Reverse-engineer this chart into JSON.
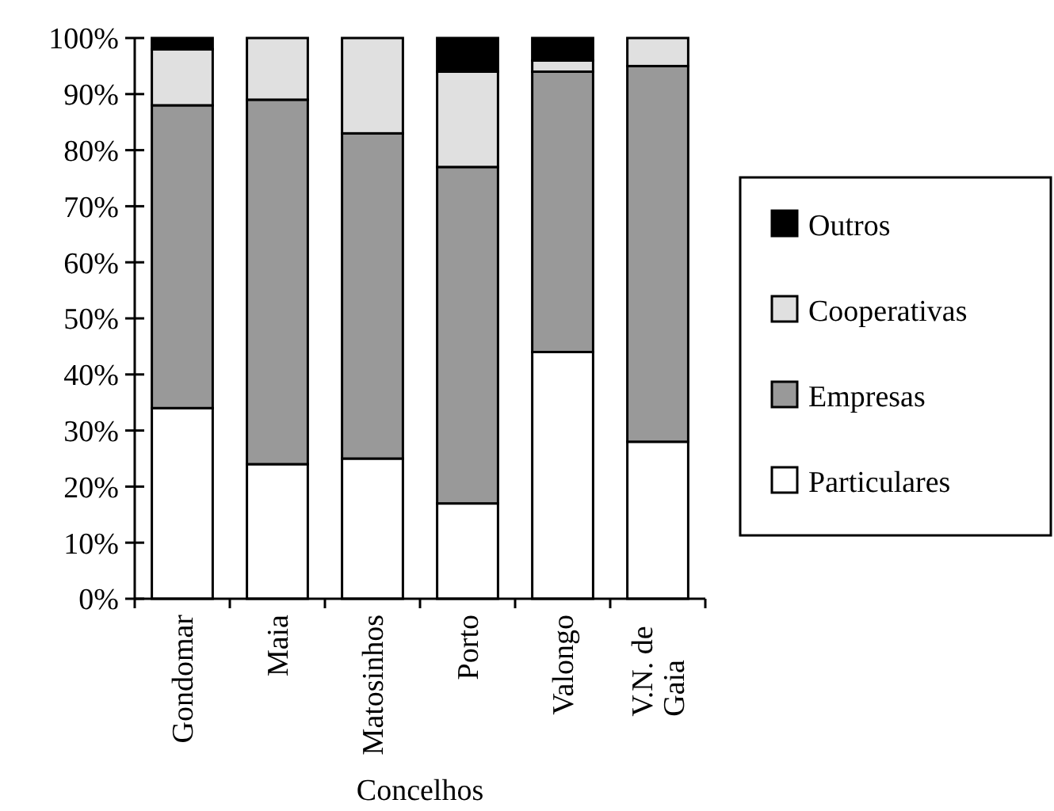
{
  "chart_data": {
    "type": "bar",
    "stacked": true,
    "xlabel": "Concelhos",
    "categories": [
      "Gondomar",
      "Maia",
      "Matosinhos",
      "Porto",
      "Valongo",
      "V.N. de Gaia"
    ],
    "series": [
      {
        "name": "Particulares",
        "color": "#ffffff",
        "values": [
          34,
          24,
          25,
          17,
          44,
          28
        ]
      },
      {
        "name": "Empresas",
        "color": "#999999",
        "values": [
          54,
          65,
          58,
          60,
          50,
          67
        ]
      },
      {
        "name": "Cooperativas",
        "color": "#e0e0e0",
        "values": [
          10,
          11,
          17,
          17,
          2,
          5
        ]
      },
      {
        "name": "Outros",
        "color": "#000000",
        "values": [
          2,
          0,
          0,
          6,
          4,
          0
        ]
      }
    ],
    "ylim": [
      0,
      100
    ],
    "yticks": [
      {
        "value": 0,
        "label": "0%"
      },
      {
        "value": 10,
        "label": "10%"
      },
      {
        "value": 20,
        "label": "20%"
      },
      {
        "value": 30,
        "label": "30%"
      },
      {
        "value": 40,
        "label": "40%"
      },
      {
        "value": 50,
        "label": "50%"
      },
      {
        "value": 60,
        "label": "60%"
      },
      {
        "value": 70,
        "label": "70%"
      },
      {
        "value": 80,
        "label": "80%"
      },
      {
        "value": 90,
        "label": "90%"
      },
      {
        "value": 100,
        "label": "100%"
      }
    ],
    "legend": "right",
    "grid": false
  }
}
